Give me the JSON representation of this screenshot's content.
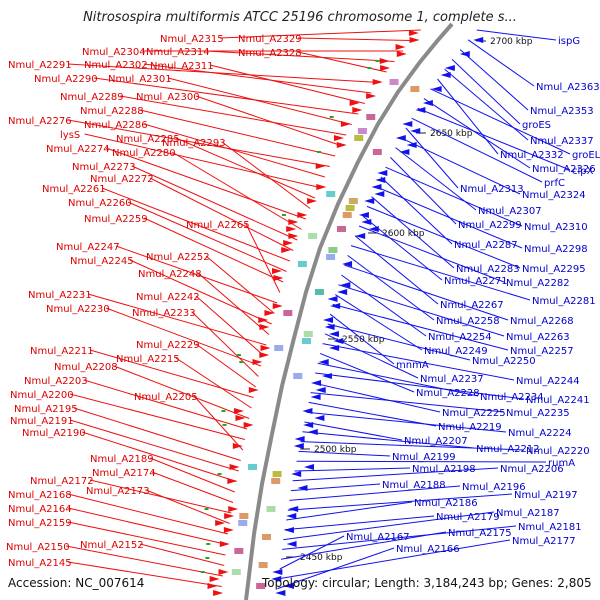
{
  "title": "Nitrosospira multiformis ATCC 25196 chromosome 1, complete s...",
  "accession": "Accession: NC_007614",
  "topology": "Topology: circular; Length: 3,184,243 bp; Genes: 2,805",
  "kbp_ticks": [
    "2700 kbp",
    "2650 kbp",
    "2600 kbp",
    "2550 kbp",
    "2500 kbp",
    "2450 kbp"
  ],
  "left_genes": [
    "Nmul_A2315",
    "Nmul_A2329",
    "Nmul_A2304",
    "Nmul_A2314",
    "Nmul_A2328",
    "Nmul_A2291",
    "Nmul_A2302",
    "Nmul_A2311",
    "Nmul_A2290",
    "Nmul_A2301",
    "Nmul_A2289",
    "Nmul_A2300",
    "Nmul_A2288",
    "Nmul_A2276",
    "Nmul_A2286",
    "lysS",
    "Nmul_A2285",
    "Nmul_A2293",
    "Nmul_A2274",
    "Nmul_A2280",
    "Nmul_A2273",
    "Nmul_A2272",
    "Nmul_A2261",
    "Nmul_A2260",
    "Nmul_A2259",
    "Nmul_A2265",
    "Nmul_A2247",
    "Nmul_A2252",
    "Nmul_A2245",
    "Nmul_A2248",
    "Nmul_A2231",
    "Nmul_A2242",
    "Nmul_A2230",
    "Nmul_A2233",
    "Nmul_A2229",
    "Nmul_A2211",
    "Nmul_A2215",
    "Nmul_A2208",
    "Nmul_A2203",
    "Nmul_A2200",
    "Nmul_A2205",
    "Nmul_A2195",
    "Nmul_A2191",
    "Nmul_A2190",
    "Nmul_A2189",
    "Nmul_A2174",
    "Nmul_A2172",
    "Nmul_A2173",
    "Nmul_A2168",
    "Nmul_A2164",
    "Nmul_A2159",
    "Nmul_A2152",
    "Nmul_A2150",
    "Nmul_A2145"
  ],
  "right_genes": [
    "ispG",
    "Nmul_A2363",
    "Nmul_A2353",
    "groES",
    "Nmul_A2337",
    "Nmul_A2332",
    "groEL",
    "Nmul_A2326",
    "clpX",
    "prfC",
    "Nmul_A2313",
    "Nmul_A2324",
    "Nmul_A2307",
    "Nmul_A2299",
    "Nmul_A2310",
    "Nmul_A2287",
    "Nmul_A2298",
    "Nmul_A2283",
    "Nmul_A2295",
    "Nmul_A2271",
    "Nmul_A2282",
    "Nmul_A2267",
    "Nmul_A2281",
    "Nmul_A2258",
    "Nmul_A2268",
    "Nmul_A2254",
    "Nmul_A2263",
    "Nmul_A2249",
    "Nmul_A2257",
    "mnmA",
    "Nmul_A2250",
    "Nmul_A2237",
    "Nmul_A2244",
    "Nmul_A2228",
    "Nmul_A2234",
    "Nmul_A2241",
    "Nmul_A2225",
    "Nmul_A2235",
    "Nmul_A2219",
    "Nmul_A2224",
    "Nmul_A2207",
    "Nmul_A2212",
    "Nmul_A2220",
    "Nmul_A2199",
    "rumA",
    "Nmul_A2198",
    "Nmul_A2206",
    "Nmul_A2188",
    "Nmul_A2196",
    "Nmul_A2197",
    "Nmul_A2186",
    "Nmul_A2179",
    "Nmul_A2187",
    "Nmul_A2181",
    "Nmul_A2175",
    "Nmul_A2167",
    "Nmul_A2177",
    "Nmul_A2166"
  ],
  "colors": {
    "forward_strand": "#ee1111",
    "reverse_strand": "#1111ee",
    "backbone": "#888888"
  }
}
